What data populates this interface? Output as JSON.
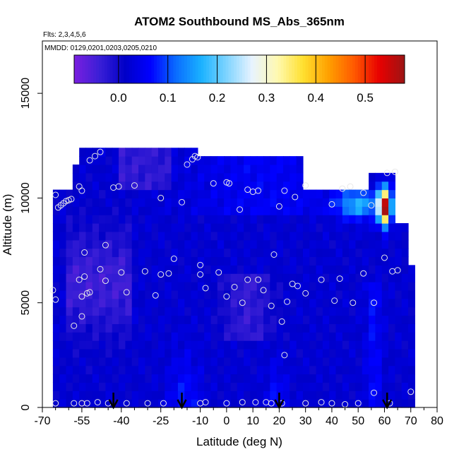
{
  "chart_data": {
    "type": "heatmap",
    "title": "ATOM2 Southbound MS_Abs_365nm",
    "notes": [
      "Flts: 2,3,4,5,6",
      "MMDD: 0129,0201,0203,0205,0210"
    ],
    "xlabel": "Latitude (deg N)",
    "ylabel": "Altitude (m)",
    "xlim": [
      -70,
      80
    ],
    "ylim": [
      0,
      17500
    ],
    "x_ticks": [
      -70,
      -55,
      -40,
      -25,
      -10,
      0,
      10,
      20,
      30,
      40,
      50,
      60,
      70,
      80
    ],
    "x_tick_labels": [
      "-70",
      "-55",
      "-40",
      "-25",
      "-10",
      "0",
      "10",
      "20",
      "30",
      "40",
      "50",
      "60",
      "70",
      "80"
    ],
    "x_minor_ticks": [
      -65,
      -60,
      -50,
      -45,
      -35,
      -30,
      -20,
      -15,
      -5,
      5,
      15,
      25,
      35,
      45,
      55,
      65,
      75
    ],
    "y_ticks": [
      0,
      5000,
      10000,
      15000
    ],
    "y_tick_labels": [
      "0",
      "5000",
      "10000",
      "15000"
    ],
    "colorbar": {
      "range": [
        -0.09,
        0.58
      ],
      "ticks": [
        0.0,
        0.1,
        0.2,
        0.3,
        0.4,
        0.5
      ],
      "tick_labels": [
        "0.0",
        "0.1",
        "0.2",
        "0.3",
        "0.4",
        "0.5"
      ],
      "colors": [
        "#7a1fe0",
        "#3a1fd6",
        "#0000c8",
        "#0000ff",
        "#0a6cff",
        "#1ab2ff",
        "#7fd4ff",
        "#e8f3ff",
        "#fff9b0",
        "#ffe030",
        "#ffa000",
        "#ff5a00",
        "#e80000",
        "#9c1414"
      ]
    },
    "flight_arrows_lat": [
      -43,
      -17,
      20,
      61
    ],
    "grid": false,
    "legend": "none",
    "sample_points": [
      [
        -65,
        10150
      ],
      [
        -64,
        9550
      ],
      [
        -63,
        9650
      ],
      [
        -62,
        9750
      ],
      [
        -61,
        9850
      ],
      [
        -60,
        9900
      ],
      [
        -59,
        9950
      ],
      [
        -56,
        10550
      ],
      [
        -55,
        10350
      ],
      [
        -52,
        11800
      ],
      [
        -50,
        12000
      ],
      [
        -48,
        12200
      ],
      [
        -43,
        10500
      ],
      [
        -41,
        10550
      ],
      [
        -35,
        10600
      ],
      [
        -25,
        10000
      ],
      [
        -17,
        9800
      ],
      [
        -15,
        11600
      ],
      [
        -13,
        11850
      ],
      [
        -12,
        12000
      ],
      [
        -11,
        11950
      ],
      [
        -5,
        10700
      ],
      [
        0,
        10750
      ],
      [
        1,
        10700
      ],
      [
        5,
        9450
      ],
      [
        8,
        10400
      ],
      [
        10,
        10300
      ],
      [
        12,
        10350
      ],
      [
        20,
        9600
      ],
      [
        22,
        10350
      ],
      [
        26,
        10050
      ],
      [
        30,
        10600
      ],
      [
        40,
        9700
      ],
      [
        44,
        10450
      ],
      [
        47,
        10550
      ],
      [
        52,
        10250
      ],
      [
        55,
        9650
      ],
      [
        61,
        11200
      ],
      [
        64,
        11250
      ],
      [
        60,
        7150
      ],
      [
        18,
        7300
      ],
      [
        -20,
        7100
      ],
      [
        -66,
        5600
      ],
      [
        -65,
        5150
      ],
      [
        -55,
        5300
      ],
      [
        -56,
        6100
      ],
      [
        -54,
        6250
      ],
      [
        -52,
        5500
      ],
      [
        -48,
        6600
      ],
      [
        -46,
        6050
      ],
      [
        -40,
        6450
      ],
      [
        -38,
        5500
      ],
      [
        -31,
        6500
      ],
      [
        -27,
        5350
      ],
      [
        -25,
        6350
      ],
      [
        -22,
        6400
      ],
      [
        -10,
        6800
      ],
      [
        -10,
        6350
      ],
      [
        -8,
        5700
      ],
      [
        -3,
        6450
      ],
      [
        0,
        5300
      ],
      [
        3,
        5750
      ],
      [
        6,
        5000
      ],
      [
        8,
        6100
      ],
      [
        12,
        6100
      ],
      [
        14,
        5600
      ],
      [
        17,
        4850
      ],
      [
        23,
        5050
      ],
      [
        25,
        5900
      ],
      [
        27,
        5800
      ],
      [
        30,
        5450
      ],
      [
        36,
        6100
      ],
      [
        41,
        5100
      ],
      [
        43,
        6150
      ],
      [
        48,
        5000
      ],
      [
        52,
        6400
      ],
      [
        56,
        5000
      ],
      [
        63,
        6500
      ],
      [
        65,
        6550
      ],
      [
        -58,
        3900
      ],
      [
        -55,
        4350
      ],
      [
        -53,
        5450
      ],
      [
        -54,
        7400
      ],
      [
        -46,
        7750
      ],
      [
        21,
        4100
      ],
      [
        22,
        2500
      ],
      [
        -65,
        200
      ],
      [
        -58,
        200
      ],
      [
        -55,
        200
      ],
      [
        -53,
        200
      ],
      [
        -49,
        250
      ],
      [
        -45,
        200
      ],
      [
        -38,
        200
      ],
      [
        -30,
        200
      ],
      [
        -24,
        200
      ],
      [
        -10,
        200
      ],
      [
        -8,
        250
      ],
      [
        0,
        200
      ],
      [
        6,
        250
      ],
      [
        11,
        250
      ],
      [
        15,
        250
      ],
      [
        17,
        200
      ],
      [
        21,
        200
      ],
      [
        30,
        200
      ],
      [
        36,
        250
      ],
      [
        40,
        200
      ],
      [
        45,
        150
      ],
      [
        50,
        200
      ],
      [
        56,
        700
      ],
      [
        62,
        200
      ],
      [
        70,
        750
      ]
    ]
  }
}
